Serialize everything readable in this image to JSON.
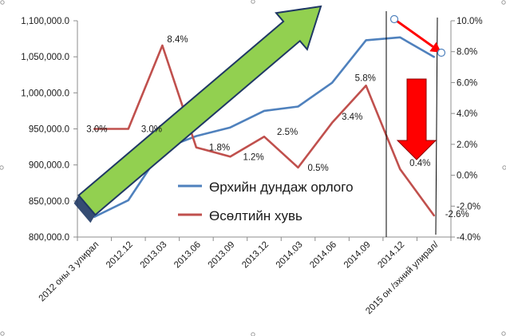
{
  "chart_data": {
    "type": "line",
    "categories": [
      "2012 оны 3 улирал",
      "2012.12",
      "2013.03",
      "2013.06",
      "2013.09",
      "2013.12",
      "2014.03",
      "2014.06",
      "2014.09",
      "2014.12",
      "2015 он /эхний улирал/"
    ],
    "series": [
      {
        "name": "Өрхийн дундаж орлого",
        "axis": "left",
        "color": "#4f81bd",
        "values": [
          828000,
          851000,
          922000,
          940000,
          952000,
          975000,
          981000,
          1014000,
          1073000,
          1077000,
          1050000
        ]
      },
      {
        "name": "Өсөлтийн хувь",
        "axis": "right",
        "color": "#c0504d",
        "values": [
          3.0,
          3.0,
          8.4,
          1.8,
          1.2,
          2.5,
          0.5,
          3.4,
          5.8,
          0.4,
          -2.6
        ],
        "data_labels": [
          "3.0%",
          "3.0%",
          "8.4%",
          "1.8%",
          "1.2%",
          "2.5%",
          "0.5%",
          "3.4%",
          "5.8%",
          "0.4%",
          "-2.6%"
        ]
      }
    ],
    "y_left": {
      "ylim": [
        800000,
        1100000
      ],
      "ticks": [
        800000,
        850000,
        900000,
        950000,
        1000000,
        1050000,
        1100000
      ],
      "tick_labels": [
        "800,000.0",
        "850,000.0",
        "900,000.0",
        "950,000.0",
        "1,000,000.0",
        "1,050,000.0",
        "1,100,000.0"
      ]
    },
    "y_right": {
      "ylim": [
        -4,
        10
      ],
      "ticks": [
        -4,
        -2,
        0,
        2,
        4,
        6,
        8,
        10
      ],
      "tick_labels": [
        "-4.0%",
        "-2.0%",
        "0.0%",
        "2.0%",
        "4.0%",
        "6.0%",
        "8.0%",
        "10.0%"
      ]
    },
    "grid": false,
    "legend_placement": "center-right inside plot",
    "annotations": {
      "up_arrow_color": "#92d050",
      "up_arrow_outline": "#1f3864",
      "down_arrow_color": "#ff0000",
      "small_arrow_color": "#ff0000"
    }
  }
}
